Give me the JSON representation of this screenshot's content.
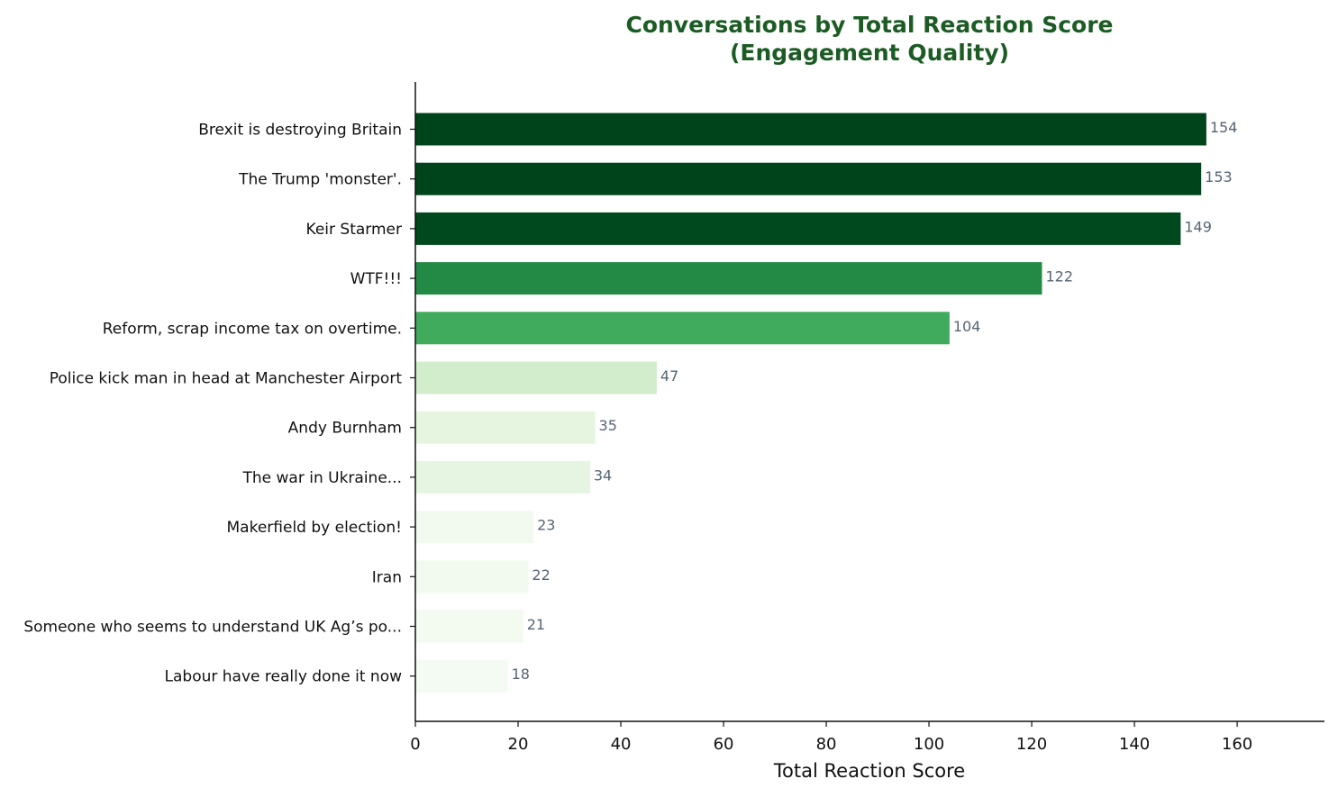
{
  "chart_data": {
    "type": "bar",
    "orientation": "horizontal",
    "title_lines": [
      "Conversations by Total Reaction Score",
      "(Engagement Quality)"
    ],
    "xlabel": "Total Reaction Score",
    "ylabel": "",
    "xlim": [
      0,
      177
    ],
    "xticks": [
      0,
      20,
      40,
      60,
      80,
      100,
      120,
      140,
      160
    ],
    "categories": [
      "Brexit is destroying Britain",
      "The Trump 'monster'.",
      "Keir Starmer",
      "WTF!!!",
      "Reform, scrap income tax on overtime.",
      "Police kick man in head at Manchester Airport",
      "Andy Burnham",
      "The war in Ukraine...",
      "Makerfield by election!",
      "Iran",
      "Someone who seems to understand UK Ag’s po...",
      "Labour have really done it now"
    ],
    "values": [
      154,
      153,
      149,
      122,
      104,
      47,
      35,
      34,
      23,
      22,
      21,
      18
    ],
    "bar_colors": [
      "#00441b",
      "#00441b",
      "#00481d",
      "#228a44",
      "#40aa5d",
      "#d1edcb",
      "#e5f5e0",
      "#e6f5e1",
      "#f2faef",
      "#f2faef",
      "#f3faf0",
      "#f4fbf2"
    ],
    "colors": {
      "title": "#1c5c24",
      "value_label": "#566573",
      "axis": "#111111"
    },
    "grid": false
  }
}
